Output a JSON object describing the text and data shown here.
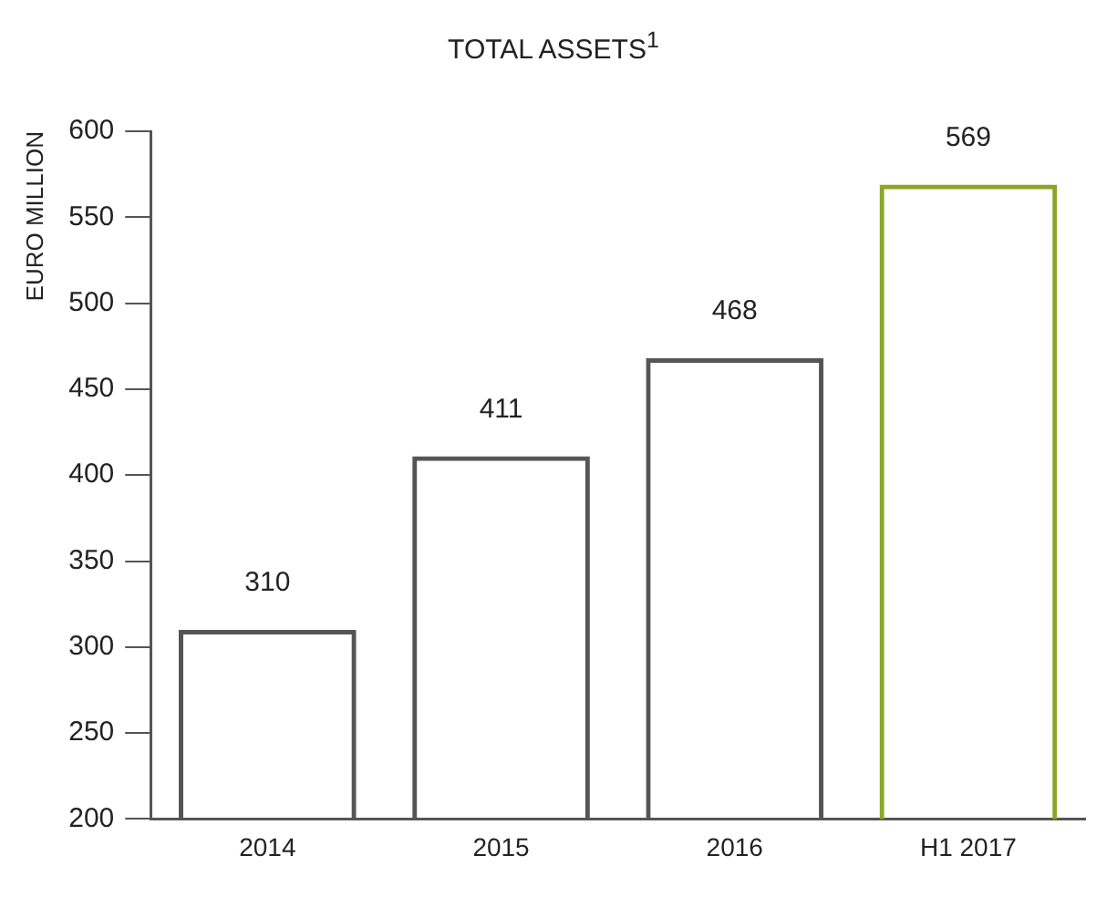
{
  "chart_data": {
    "type": "bar",
    "title": "TOTAL ASSETS$^{1}$",
    "ylabel": "EURO MILLION",
    "categories": [
      "2014",
      "2015",
      "2016",
      "H1 2017"
    ],
    "values": [
      310,
      411,
      468,
      569
    ],
    "colors": [
      "#555555",
      "#555555",
      "#555555",
      "#8aa626"
    ],
    "ylim": [
      200,
      600
    ],
    "yticks": [
      200,
      250,
      300,
      350,
      400,
      450,
      500,
      550,
      600
    ],
    "data_labels": true,
    "grid": false,
    "legend": false
  }
}
